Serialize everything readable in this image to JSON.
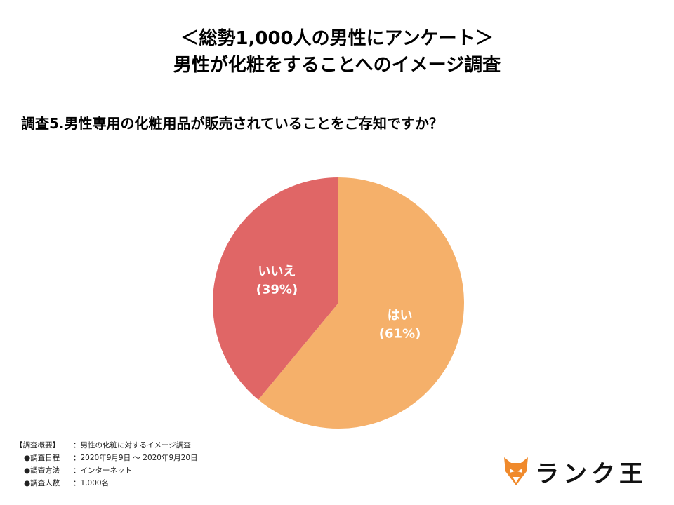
{
  "title": {
    "line1": "＜総勢1,000人の男性にアンケート＞",
    "line2": "男性が化粧をすることへのイメージ調査"
  },
  "question": "調査5.男性専用の化粧用品が販売されていることをご存知ですか？",
  "chart_data": {
    "type": "pie",
    "categories": [
      "はい",
      "いいえ"
    ],
    "values": [
      61,
      39
    ],
    "labels": [
      "(61%)",
      "(39%)"
    ],
    "colors": [
      "#f5b06a",
      "#e06666"
    ]
  },
  "summary": {
    "header_key": "【調査概要】",
    "header_val": "：男性の化粧に対するイメージ調査",
    "rows": [
      {
        "key": "●調査日程",
        "val": "：2020年9月9日 〜 2020年9月20日"
      },
      {
        "key": "●調査方法",
        "val": "：インターネット"
      },
      {
        "key": "●調査人数",
        "val": "：1,000名"
      }
    ]
  },
  "logo": {
    "text": "ランク王",
    "icon": "fox-icon",
    "icon_color": "#f08a2c"
  }
}
